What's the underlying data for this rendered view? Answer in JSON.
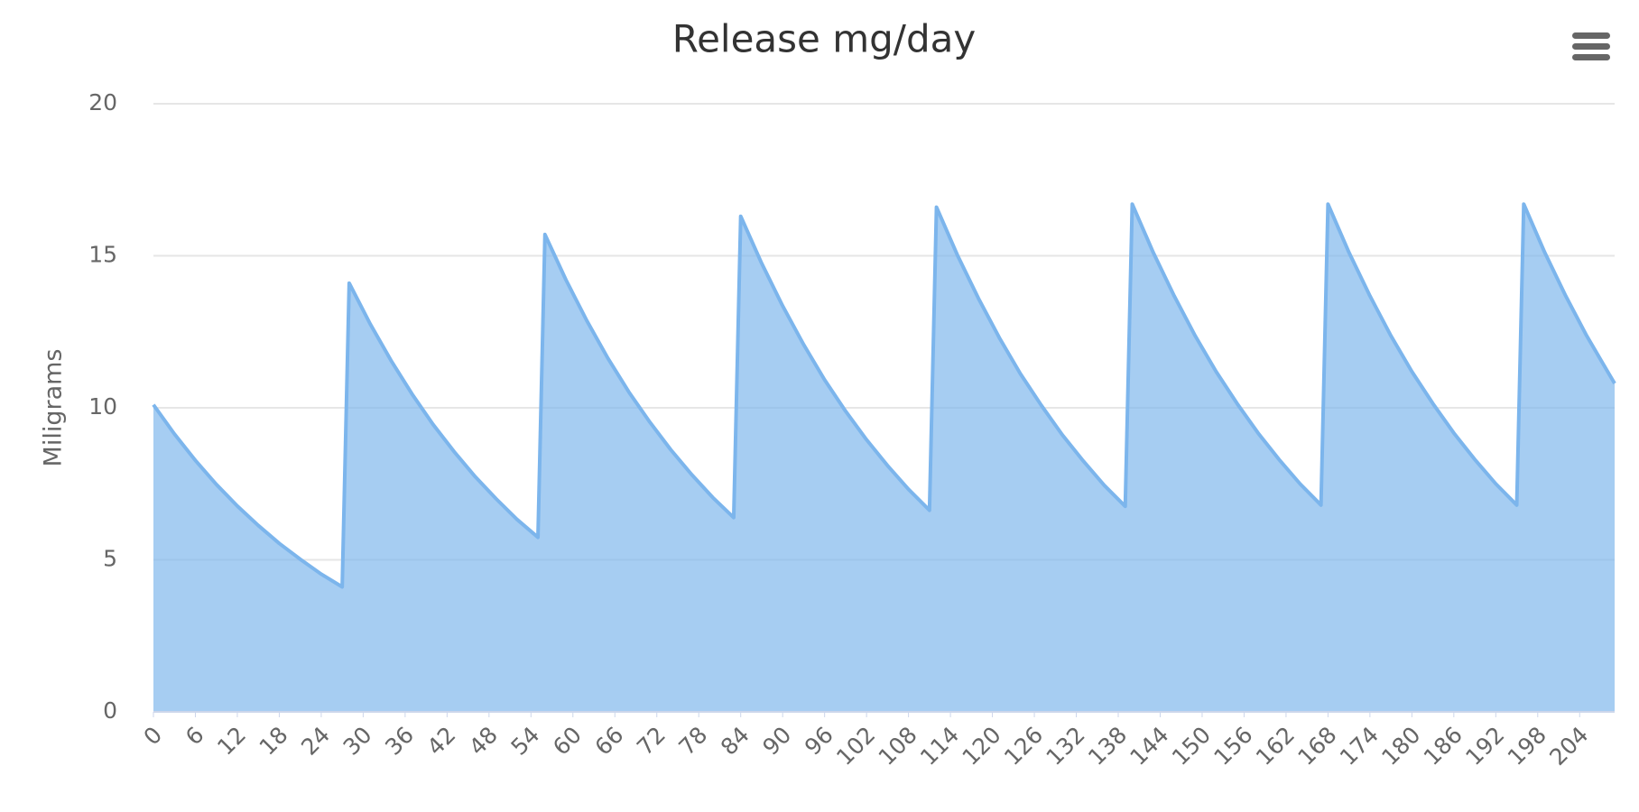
{
  "chart_data": {
    "type": "area",
    "title": "Release mg/day",
    "y_label": "Miligrams",
    "x": [
      0,
      3,
      6,
      9,
      12,
      15,
      18,
      21,
      24,
      27,
      28,
      31,
      34,
      37,
      40,
      43,
      46,
      49,
      52,
      55,
      56,
      59,
      62,
      65,
      68,
      71,
      74,
      77,
      80,
      83,
      84,
      87,
      90,
      93,
      96,
      99,
      102,
      105,
      108,
      111,
      112,
      115,
      118,
      121,
      124,
      127,
      130,
      133,
      136,
      139,
      140,
      143,
      146,
      149,
      152,
      155,
      158,
      161,
      164,
      167,
      168,
      171,
      174,
      177,
      180,
      183,
      186,
      189,
      192,
      195,
      196,
      199,
      202,
      205,
      208,
      209
    ],
    "values": [
      10.1,
      9.14,
      8.27,
      7.48,
      6.77,
      6.13,
      5.54,
      5.02,
      4.53,
      4.11,
      14.1,
      12.76,
      11.55,
      10.45,
      9.45,
      8.56,
      7.74,
      7.01,
      6.33,
      5.74,
      15.7,
      14.21,
      12.86,
      11.63,
      10.52,
      9.53,
      8.62,
      7.8,
      7.05,
      6.39,
      16.3,
      14.75,
      13.35,
      12.08,
      10.92,
      9.89,
      8.95,
      8.1,
      7.32,
      6.63,
      16.6,
      15.02,
      13.6,
      12.3,
      11.12,
      10.08,
      9.11,
      8.25,
      7.45,
      6.76,
      16.7,
      15.11,
      13.68,
      12.37,
      11.19,
      10.14,
      9.17,
      8.3,
      7.5,
      6.8,
      16.7,
      15.11,
      13.68,
      12.37,
      11.19,
      10.14,
      9.17,
      8.3,
      7.5,
      6.8,
      16.7,
      15.11,
      13.68,
      12.37,
      11.19,
      10.8
    ],
    "color": "#7cb5ec",
    "xlim": [
      0,
      209
    ],
    "xticks": [
      0,
      6,
      12,
      18,
      24,
      30,
      36,
      42,
      48,
      54,
      60,
      66,
      72,
      78,
      84,
      90,
      96,
      102,
      108,
      114,
      120,
      126,
      132,
      138,
      144,
      150,
      156,
      162,
      168,
      174,
      180,
      186,
      192,
      198,
      204
    ],
    "ylim": [
      0,
      20
    ],
    "yticks": [
      0,
      5,
      10,
      15,
      20
    ],
    "grid": true
  }
}
